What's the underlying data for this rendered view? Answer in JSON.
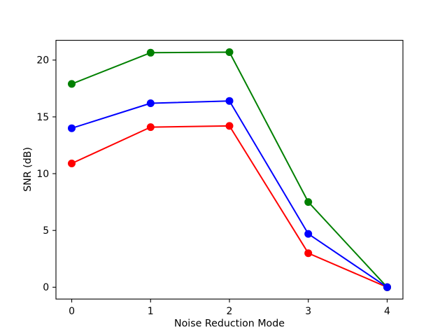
{
  "figure": {
    "background": "#ffffff"
  },
  "chart_data": {
    "type": "line",
    "title": "",
    "xlabel": "Noise Reduction Mode",
    "ylabel": "SNR (dB)",
    "x": [
      0,
      1,
      2,
      3,
      4
    ],
    "series": [
      {
        "name": "red",
        "color": "#ff0000",
        "marker": "circle",
        "values": [
          10.9,
          14.1,
          14.2,
          3.0,
          0.0
        ]
      },
      {
        "name": "green",
        "color": "#008000",
        "marker": "circle",
        "values": [
          17.9,
          20.65,
          20.7,
          7.5,
          0.0
        ]
      },
      {
        "name": "blue",
        "color": "#0000ff",
        "marker": "circle",
        "values": [
          14.0,
          16.2,
          16.4,
          4.7,
          0.0
        ]
      }
    ],
    "xticks": [
      0,
      1,
      2,
      3,
      4
    ],
    "yticks": [
      0,
      5,
      10,
      15,
      20
    ],
    "xlim": [
      -0.2,
      4.2
    ],
    "ylim": [
      -1.04,
      21.74
    ],
    "grid": false,
    "legend": null,
    "spine_color": "#000000",
    "tick_label_color": "#000000"
  }
}
